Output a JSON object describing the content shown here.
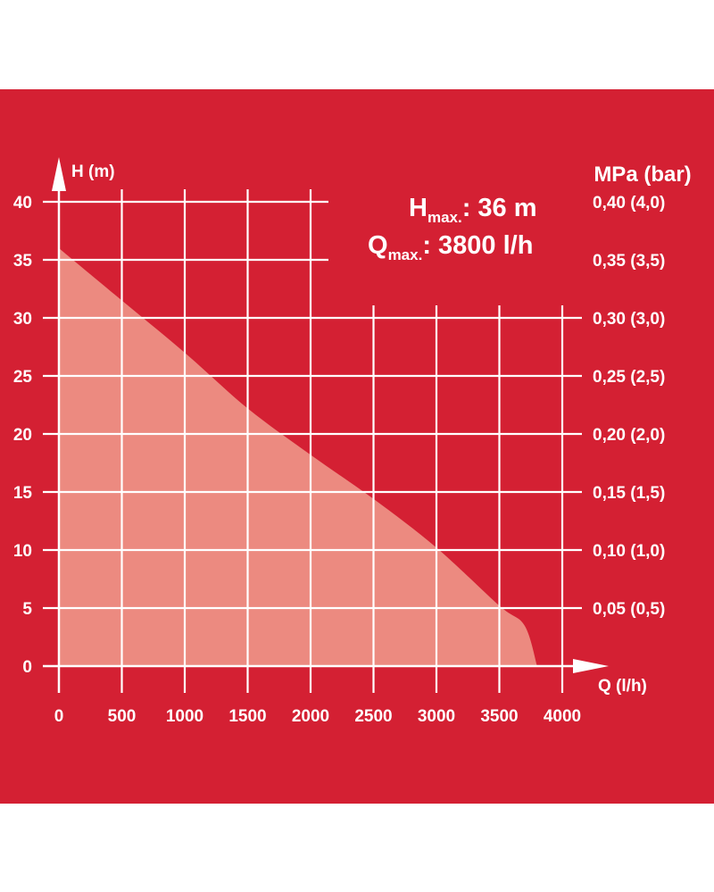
{
  "colors": {
    "background": "#d42033",
    "curve_fill": "#ec8a80",
    "grid": "#ffffff",
    "text": "#ffffff"
  },
  "annotations": {
    "hmax_main": "H",
    "hmax_sub": "max.",
    "hmax_value": ": 36 m",
    "qmax_main": "Q",
    "qmax_sub": "max.",
    "qmax_value": ": 3800 l/h"
  },
  "chart_data": {
    "type": "area",
    "x": [
      0,
      500,
      1000,
      1500,
      2000,
      2500,
      3000,
      3500,
      3700,
      3800
    ],
    "y": [
      36,
      31.5,
      27,
      22.2,
      18.2,
      14.4,
      10.2,
      5.2,
      3.5,
      0
    ],
    "xlabel": "Q (l/h)",
    "ylabel": "H (m)",
    "y2label": "MPa (bar)",
    "xlim": [
      0,
      4000
    ],
    "ylim": [
      0,
      40
    ],
    "x_ticks": [
      0,
      500,
      1000,
      1500,
      2000,
      2500,
      3000,
      3500,
      4000
    ],
    "x_tick_labels": [
      "0",
      "500",
      "1000",
      "1500",
      "2000",
      "2500",
      "3000",
      "3500",
      "4000"
    ],
    "y_ticks": [
      0,
      5,
      10,
      15,
      20,
      25,
      30,
      35,
      40
    ],
    "y_tick_labels": [
      "0",
      "5",
      "10",
      "15",
      "20",
      "25",
      "30",
      "35",
      "40"
    ],
    "y2_ticks": [
      5,
      10,
      15,
      20,
      25,
      30,
      35,
      40
    ],
    "y2_tick_labels": [
      "0,05 (0,5)",
      "0,10 (1,0)",
      "0,15 (1,5)",
      "0,20 (2,0)",
      "0,25 (2,5)",
      "0,30 (3,0)",
      "0,35 (3,5)",
      "0,40 (4,0)"
    ],
    "grid": true
  }
}
